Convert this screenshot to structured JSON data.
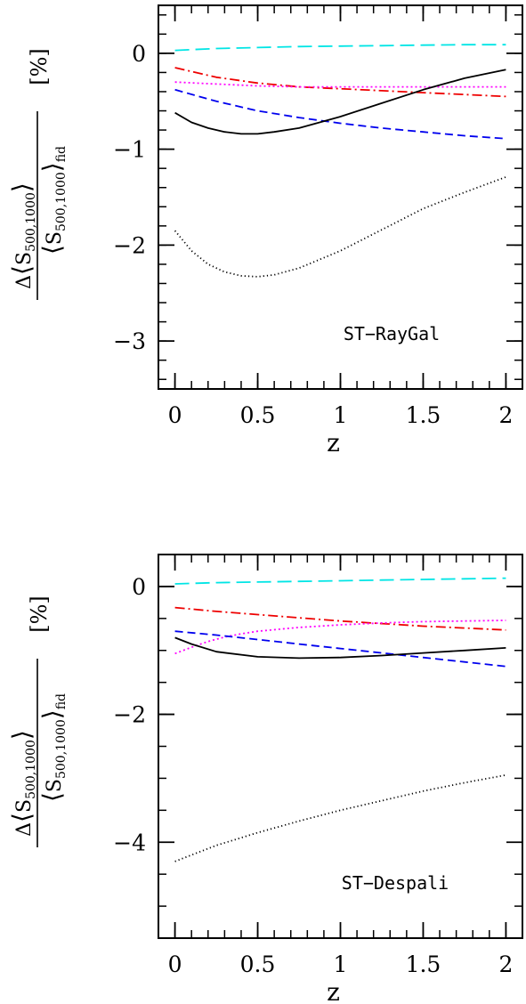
{
  "chart_data": [
    {
      "type": "line",
      "annotation": "ST−RayGal",
      "xlabel": "z",
      "ylabel": {
        "delta": "Δ",
        "numerator": "⟨S500,1000⟩",
        "numerator_base": "S",
        "numerator_sub": "500,1000",
        "denominator_base": "S",
        "denominator_sub": "500,1000",
        "denominator_suffix": "fid",
        "unit": "[%]"
      },
      "xlim": [
        -0.1,
        2.1
      ],
      "ylim": [
        -3.5,
        0.5
      ],
      "xticks": [
        0,
        0.5,
        1,
        1.5,
        2
      ],
      "xtick_labels": [
        "0",
        "0.5",
        "1",
        "1.5",
        "2"
      ],
      "yticks": [
        -3,
        -2,
        -1,
        0
      ],
      "ytick_labels": [
        "−3",
        "−2",
        "−1",
        "0"
      ],
      "x_minor_step": 0.1,
      "y_minor_step": 0.2,
      "series": [
        {
          "color": "#00e5e5",
          "dash": "long-dash",
          "x": [
            0,
            0.25,
            0.5,
            0.75,
            1,
            1.25,
            1.5,
            1.75,
            2
          ],
          "y": [
            0.03,
            0.05,
            0.06,
            0.07,
            0.075,
            0.08,
            0.085,
            0.09,
            0.09
          ]
        },
        {
          "color": "#ee0000",
          "dash": "dash-dot",
          "x": [
            0,
            0.25,
            0.5,
            0.75,
            1,
            1.25,
            1.5,
            1.75,
            2
          ],
          "y": [
            -0.15,
            -0.25,
            -0.31,
            -0.35,
            -0.37,
            -0.39,
            -0.41,
            -0.43,
            -0.45
          ]
        },
        {
          "color": "#ff00ff",
          "dash": "dotted",
          "x": [
            0,
            0.25,
            0.5,
            0.75,
            1,
            1.25,
            1.5,
            1.75,
            2
          ],
          "y": [
            -0.3,
            -0.32,
            -0.34,
            -0.35,
            -0.35,
            -0.35,
            -0.35,
            -0.35,
            -0.35
          ]
        },
        {
          "color": "#0000ee",
          "dash": "short-dash",
          "x": [
            0,
            0.25,
            0.5,
            0.75,
            1,
            1.25,
            1.5,
            1.75,
            2
          ],
          "y": [
            -0.38,
            -0.5,
            -0.6,
            -0.67,
            -0.73,
            -0.78,
            -0.82,
            -0.86,
            -0.89
          ]
        },
        {
          "color": "#000000",
          "dash": "solid",
          "x": [
            0,
            0.1,
            0.2,
            0.3,
            0.4,
            0.5,
            0.6,
            0.75,
            1,
            1.25,
            1.5,
            1.75,
            2
          ],
          "y": [
            -0.62,
            -0.72,
            -0.78,
            -0.82,
            -0.84,
            -0.84,
            -0.82,
            -0.78,
            -0.66,
            -0.52,
            -0.38,
            -0.26,
            -0.17
          ]
        },
        {
          "color": "#000000",
          "dash": "fine-dotted",
          "x": [
            0,
            0.1,
            0.2,
            0.3,
            0.4,
            0.5,
            0.6,
            0.75,
            1,
            1.25,
            1.5,
            1.75,
            2
          ],
          "y": [
            -1.85,
            -2.06,
            -2.2,
            -2.28,
            -2.32,
            -2.33,
            -2.31,
            -2.24,
            -2.06,
            -1.84,
            -1.62,
            -1.45,
            -1.29
          ]
        }
      ]
    },
    {
      "type": "line",
      "annotation": "ST−Despali",
      "xlabel": "z",
      "ylabel": {
        "delta": "Δ",
        "numerator": "⟨S500,1000⟩",
        "numerator_base": "S",
        "numerator_sub": "500,1000",
        "denominator_base": "S",
        "denominator_sub": "500,1000",
        "denominator_suffix": "fid",
        "unit": "[%]"
      },
      "xlim": [
        -0.1,
        2.1
      ],
      "ylim": [
        -5.5,
        0.5
      ],
      "xticks": [
        0,
        0.5,
        1,
        1.5,
        2
      ],
      "xtick_labels": [
        "0",
        "0.5",
        "1",
        "1.5",
        "2"
      ],
      "yticks": [
        -4,
        -2,
        0
      ],
      "ytick_labels": [
        "−4",
        "−2",
        "0"
      ],
      "x_minor_step": 0.1,
      "y_minor_step": 0.5,
      "series": [
        {
          "color": "#00e5e5",
          "dash": "long-dash",
          "x": [
            0,
            0.25,
            0.5,
            0.75,
            1,
            1.25,
            1.5,
            1.75,
            2
          ],
          "y": [
            0.04,
            0.06,
            0.07,
            0.08,
            0.09,
            0.1,
            0.11,
            0.12,
            0.13
          ]
        },
        {
          "color": "#ee0000",
          "dash": "dash-dot",
          "x": [
            0,
            0.25,
            0.5,
            0.75,
            1,
            1.25,
            1.5,
            1.75,
            2
          ],
          "y": [
            -0.33,
            -0.39,
            -0.44,
            -0.49,
            -0.54,
            -0.58,
            -0.62,
            -0.65,
            -0.68
          ]
        },
        {
          "color": "#ff00ff",
          "dash": "dotted",
          "x": [
            0,
            0.1,
            0.2,
            0.3,
            0.4,
            0.5,
            0.75,
            1,
            1.25,
            1.5,
            1.75,
            2
          ],
          "y": [
            -1.05,
            -0.95,
            -0.86,
            -0.79,
            -0.74,
            -0.7,
            -0.64,
            -0.6,
            -0.57,
            -0.55,
            -0.54,
            -0.53
          ]
        },
        {
          "color": "#0000ee",
          "dash": "short-dash",
          "x": [
            0,
            0.25,
            0.5,
            0.75,
            1,
            1.25,
            1.5,
            1.75,
            2
          ],
          "y": [
            -0.7,
            -0.76,
            -0.83,
            -0.9,
            -0.97,
            -1.04,
            -1.11,
            -1.18,
            -1.25
          ]
        },
        {
          "color": "#000000",
          "dash": "solid",
          "x": [
            0,
            0.1,
            0.25,
            0.5,
            0.75,
            1,
            1.25,
            1.5,
            1.75,
            2
          ],
          "y": [
            -0.8,
            -0.9,
            -1.02,
            -1.1,
            -1.12,
            -1.11,
            -1.08,
            -1.04,
            -1.0,
            -0.96
          ]
        },
        {
          "color": "#000000",
          "dash": "fine-dotted",
          "x": [
            0,
            0.25,
            0.5,
            0.75,
            1,
            1.25,
            1.5,
            1.75,
            2
          ],
          "y": [
            -4.3,
            -4.05,
            -3.85,
            -3.67,
            -3.5,
            -3.35,
            -3.2,
            -3.07,
            -2.95
          ]
        }
      ]
    }
  ]
}
